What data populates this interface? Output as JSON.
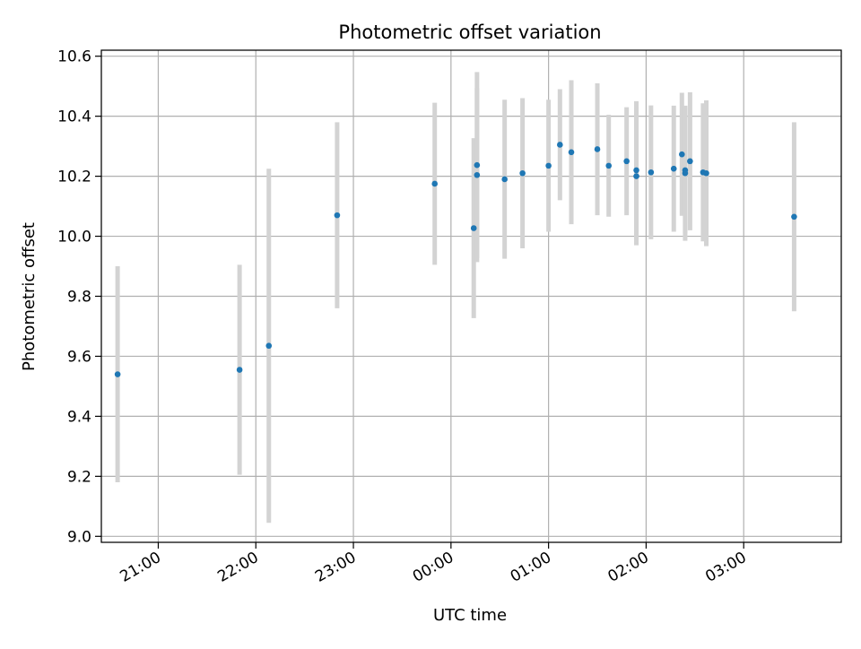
{
  "chart_data": {
    "type": "scatter",
    "title": "Photometric offset variation",
    "xlabel": "UTC time",
    "ylabel": "Photometric offset",
    "grid": true,
    "legend": "none",
    "xlim": [
      "20:25",
      "04:00"
    ],
    "ylim": [
      8.98,
      10.62
    ],
    "x_ticks": [
      "21:00",
      "22:00",
      "23:00",
      "00:00",
      "01:00",
      "02:00",
      "03:00"
    ],
    "y_ticks": [
      "9.0",
      "9.2",
      "9.4",
      "9.6",
      "9.8",
      "10.0",
      "10.2",
      "10.4",
      "10.6"
    ],
    "series": [
      {
        "marker_color": "#1f77b4",
        "errorbar_color": "#d3d3d3",
        "points": [
          {
            "t": "20:35",
            "y": 9.54,
            "err": 0.36
          },
          {
            "t": "21:50",
            "y": 9.555,
            "err": 0.35
          },
          {
            "t": "22:08",
            "y": 9.635,
            "err": 0.59
          },
          {
            "t": "22:50",
            "y": 10.07,
            "err": 0.31
          },
          {
            "t": "23:50",
            "y": 10.175,
            "err": 0.27
          },
          {
            "t": "00:14",
            "y": 10.027,
            "err": 0.3
          },
          {
            "t": "00:16",
            "y": 10.237,
            "err": 0.31
          },
          {
            "t": "00:16",
            "y": 10.204,
            "err": 0.29
          },
          {
            "t": "00:33",
            "y": 10.19,
            "err": 0.265
          },
          {
            "t": "00:44",
            "y": 10.21,
            "err": 0.25
          },
          {
            "t": "01:00",
            "y": 10.235,
            "err": 0.22
          },
          {
            "t": "01:07",
            "y": 10.305,
            "err": 0.185
          },
          {
            "t": "01:14",
            "y": 10.28,
            "err": 0.24
          },
          {
            "t": "01:30",
            "y": 10.29,
            "err": 0.22
          },
          {
            "t": "01:37",
            "y": 10.235,
            "err": 0.17
          },
          {
            "t": "01:48",
            "y": 10.25,
            "err": 0.18
          },
          {
            "t": "01:54",
            "y": 10.22,
            "err": 0.23
          },
          {
            "t": "01:54",
            "y": 10.2,
            "err": 0.23
          },
          {
            "t": "02:03",
            "y": 10.213,
            "err": 0.223
          },
          {
            "t": "02:17",
            "y": 10.225,
            "err": 0.21
          },
          {
            "t": "02:22",
            "y": 10.273,
            "err": 0.205
          },
          {
            "t": "02:24",
            "y": 10.22,
            "err": 0.21
          },
          {
            "t": "02:24",
            "y": 10.21,
            "err": 0.225
          },
          {
            "t": "02:27",
            "y": 10.25,
            "err": 0.23
          },
          {
            "t": "02:35",
            "y": 10.213,
            "err": 0.23
          },
          {
            "t": "02:37",
            "y": 10.21,
            "err": 0.243
          },
          {
            "t": "03:31",
            "y": 10.065,
            "err": 0.315
          }
        ]
      }
    ]
  }
}
